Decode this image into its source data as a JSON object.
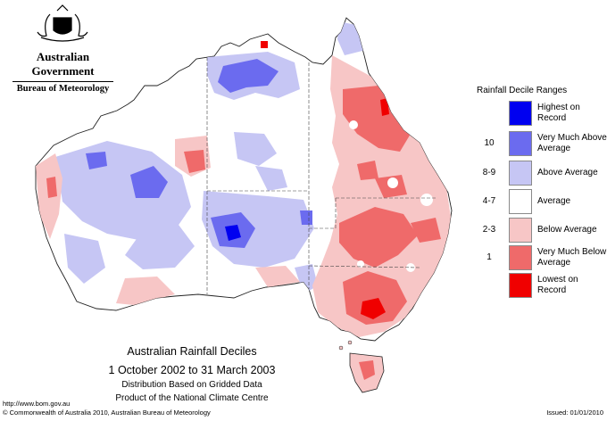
{
  "header": {
    "government": "Australian Government",
    "bureau": "Bureau of Meteorology"
  },
  "caption": {
    "title": "Australian Rainfall Deciles",
    "dates": "1 October 2002 to 31 March 2003",
    "line1": "Distribution Based on Gridded Data",
    "line2": "Product of the National Climate Centre"
  },
  "legend": {
    "heading": "Rainfall Decile Ranges",
    "items": [
      {
        "range": "",
        "label": "Highest on Record",
        "color": "#0000f0"
      },
      {
        "range": "10",
        "label": "Very Much Above Average",
        "color": "#6b6bef"
      },
      {
        "range": "8-9",
        "label": "Above Average",
        "color": "#c6c6f4"
      },
      {
        "range": "4-7",
        "label": "Average",
        "color": "#ffffff"
      },
      {
        "range": "2-3",
        "label": "Below Average",
        "color": "#f7c6c6"
      },
      {
        "range": "1",
        "label": "Very Much Below Average",
        "color": "#ef6a6a"
      },
      {
        "range": "",
        "label": "Lowest on Record",
        "color": "#f00000"
      }
    ]
  },
  "footer": {
    "url": "http://www.bom.gov.au",
    "copyright": "© Commonwealth of Australia 2010, Australian Bureau of Meteorology",
    "issued": "Issued: 01/01/2010"
  },
  "icons": {
    "coat_of_arms": "coat-of-arms-icon"
  }
}
